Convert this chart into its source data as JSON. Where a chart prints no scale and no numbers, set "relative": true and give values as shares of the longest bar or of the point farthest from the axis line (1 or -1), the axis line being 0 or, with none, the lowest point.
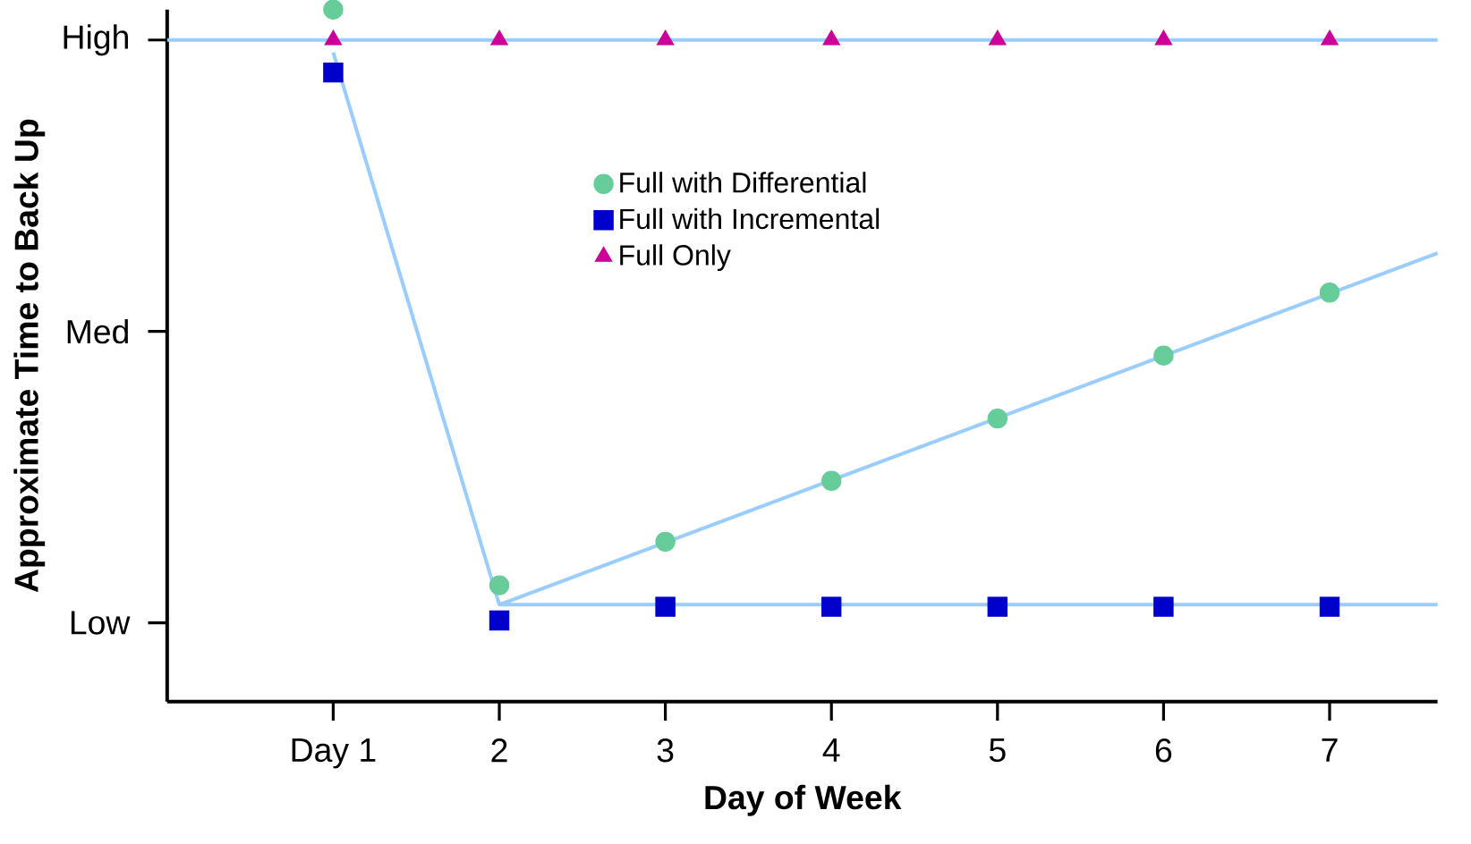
{
  "chart_data": {
    "type": "scatter",
    "relative": true,
    "xlabel": "Day of Week",
    "ylabel": "Approximate Time to Back Up",
    "xlim": [
      0,
      7.65
    ],
    "xticks": [
      {
        "value": 1,
        "label": "Day 1"
      },
      2,
      3,
      4,
      5,
      6,
      7
    ],
    "annotations": [
      "Low",
      "Med",
      "High"
    ],
    "legend": "top",
    "grid": false,
    "series": [
      {
        "type": "line",
        "color": "#99ccff",
        "x": [
          0,
          7.65
        ],
        "values": [
          0.956,
          0.956
        ],
        "marker": "none"
      },
      {
        "type": "line",
        "color": "#99ccff",
        "x": [
          1,
          2,
          7.65
        ],
        "values": [
          0.938,
          0.14,
          0.14
        ],
        "marker": "none"
      },
      {
        "type": "line",
        "color": "#99ccff",
        "x": [
          2,
          7.65
        ],
        "values": [
          0.14,
          0.648
        ],
        "marker": "none"
      },
      {
        "name": "Full with Differential",
        "color": "#66cc99",
        "marker": "circle",
        "x": [
          1,
          2,
          3,
          4,
          5,
          6,
          7
        ],
        "values": [
          1.0,
          0.168,
          0.231,
          0.319,
          0.409,
          0.5,
          0.591
        ]
      },
      {
        "name": "Full with Incremental",
        "color": "#0000cc",
        "marker": "square",
        "x": [
          1,
          2,
          3,
          4,
          5,
          6,
          7
        ],
        "values": [
          0.909,
          0.117,
          0.137,
          0.137,
          0.137,
          0.137,
          0.137
        ]
      },
      {
        "name": "Full Only",
        "color": "#cc0099",
        "marker": "triangle",
        "x": [
          1,
          2,
          3,
          4,
          5,
          6,
          7
        ],
        "values": [
          0.956,
          0.956,
          0.956,
          0.956,
          0.956,
          0.956,
          0.956
        ]
      }
    ]
  }
}
